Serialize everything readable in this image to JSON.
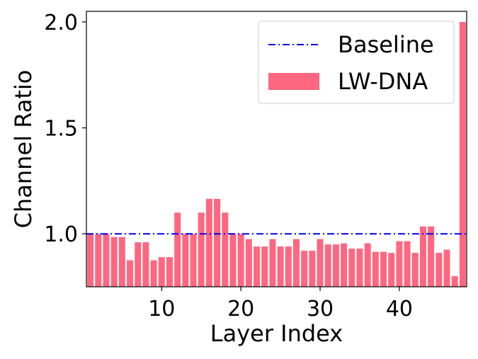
{
  "chart_data": {
    "type": "bar",
    "xlabel": "Layer Index",
    "ylabel": "Channel Ratio",
    "xlim": [
      0.5,
      48.5
    ],
    "ylim": [
      0.75,
      2.05
    ],
    "xticks": [
      10,
      20,
      30,
      40
    ],
    "yticks": [
      1.0,
      1.5,
      2.0
    ],
    "ytick_labels": [
      "1.0",
      "1.5",
      "2.0"
    ],
    "grid": false,
    "legend_position": "top-right",
    "x": [
      1,
      2,
      3,
      4,
      5,
      6,
      7,
      8,
      9,
      10,
      11,
      12,
      13,
      14,
      15,
      16,
      17,
      18,
      19,
      20,
      21,
      22,
      23,
      24,
      25,
      26,
      27,
      28,
      29,
      30,
      31,
      32,
      33,
      34,
      35,
      36,
      37,
      38,
      39,
      40,
      41,
      42,
      43,
      44,
      45,
      46,
      47,
      48
    ],
    "series": [
      {
        "name": "LW-DNA",
        "color": "#ff6680",
        "values": [
          1.0,
          1.0,
          1.0,
          0.985,
          0.985,
          0.875,
          0.96,
          0.96,
          0.875,
          0.89,
          0.89,
          1.1,
          1.0,
          1.0,
          1.1,
          1.165,
          1.165,
          1.1,
          1.0,
          1.0,
          0.975,
          0.94,
          0.94,
          0.975,
          0.94,
          0.94,
          0.975,
          0.92,
          0.92,
          0.975,
          0.95,
          0.95,
          0.955,
          0.93,
          0.93,
          0.955,
          0.915,
          0.915,
          0.91,
          0.965,
          0.965,
          0.91,
          1.035,
          1.035,
          0.91,
          0.925,
          0.8,
          2.0
        ]
      }
    ],
    "baseline": {
      "name": "Baseline",
      "value": 1.0,
      "color": "#0000ee"
    }
  }
}
